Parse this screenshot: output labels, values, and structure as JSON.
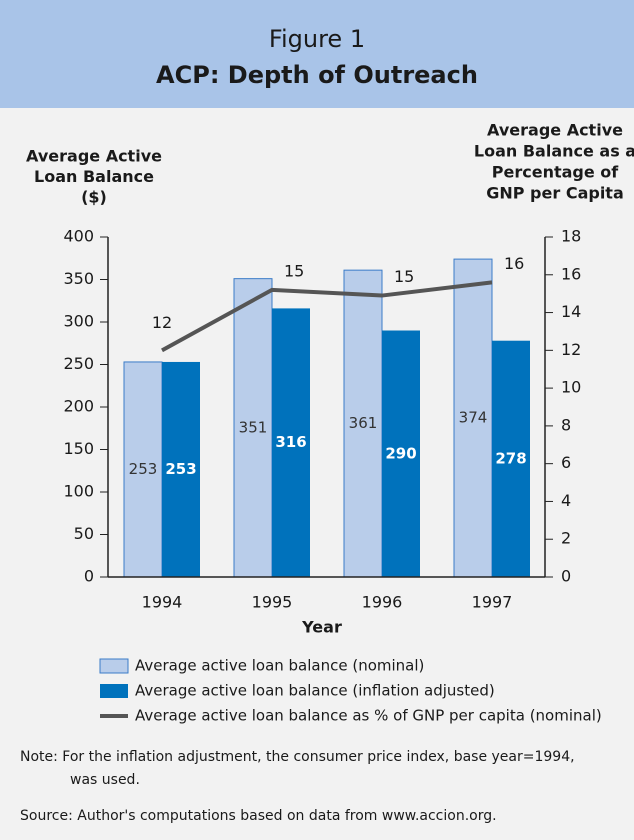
{
  "chart_data": {
    "type": "bar",
    "figure_label": "Figure 1",
    "title": "ACP: Depth of Outreach",
    "y_label": [
      "Average Active",
      "Loan Balance",
      "($)"
    ],
    "y2_label": [
      "Average Active",
      "Loan Balance as a",
      "Percentage of",
      "GNP per Capita"
    ],
    "x_label": "Year",
    "categories": [
      "1994",
      "1995",
      "1996",
      "1997"
    ],
    "series": [
      {
        "name": "Average active loan balance (nominal)",
        "color": "#b9cdea",
        "values": [
          253,
          351,
          361,
          374
        ]
      },
      {
        "name": "Average active loan balance (inflation adjusted)",
        "color": "#0072bc",
        "values": [
          253,
          316,
          290,
          278
        ]
      },
      {
        "name": "Average active loan balance as % of GNP per capita (nominal)",
        "color": "#555555",
        "type": "line",
        "axis": "y2",
        "values": [
          12.0,
          15.2,
          14.9,
          15.6
        ],
        "value_labels": [
          "12",
          "15",
          "15",
          "16"
        ]
      }
    ],
    "ylim": [
      0,
      400
    ],
    "yticks": [
      0,
      50,
      100,
      150,
      200,
      250,
      300,
      350,
      400
    ],
    "y2lim": [
      0,
      18
    ],
    "y2ticks": [
      0,
      2,
      4,
      6,
      8,
      10,
      12,
      14,
      16,
      18
    ],
    "note": [
      "Note:  For the inflation adjustment, the consumer price index, base  year=1994,",
      "was used."
    ],
    "source": "Source: Author's computations based on data from www.accion.org."
  }
}
